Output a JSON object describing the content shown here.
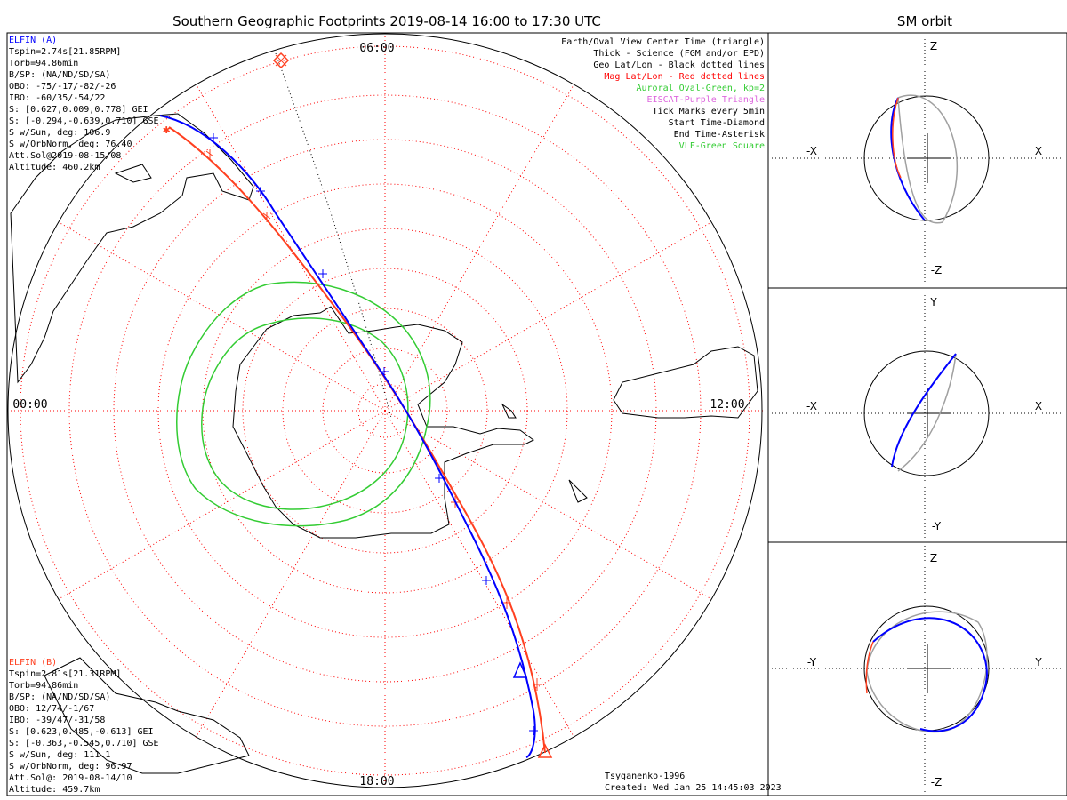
{
  "title": "Southern Geographic Footprints 2019-08-14 16:00 to 17:30 UTC",
  "sm_title": "SM orbit",
  "mlt_labels": {
    "top": "06:00",
    "left": "00:00",
    "right": "12:00",
    "bottom": "18:00"
  },
  "elfin_a": {
    "name": "ELFIN (A)",
    "color": "#0000ff",
    "lines": [
      "Tspin=2.74s[21.85RPM]",
      "Torb=94.86min",
      "B/SP: (NA/ND/SD/SA)",
      "OBO: -75/-17/-82/-26",
      "IBO: -60/35/-54/22",
      "S: [0.627,0.009,0.778] GEI",
      "S: [-0.294,-0.639,0.710] GSE",
      "S w/Sun, deg: 106.9",
      "S w/OrbNorm, deg: 76.40",
      "Att.Sol@2019-08-15/08",
      "Altitude: 460.2km"
    ]
  },
  "elfin_b": {
    "name": "ELFIN (B)",
    "color": "#ff4020",
    "lines": [
      "Tspin=2.81s[21.31RPM]",
      "Torb=94.86min",
      "B/SP: (NA/ND/SD/SA)",
      "OBO: 12/74/-1/67",
      "IBO: -39/47/-31/58",
      "S: [0.623,0.485,-0.613] GEI",
      "S: [-0.363,-0.545,0.710] GSE",
      "S w/Sun, deg: 111.1",
      "S w/OrbNorm, deg: 96.97",
      "Att.Sol@: 2019-08-14/10",
      "Altitude: 459.7km"
    ]
  },
  "legend": [
    {
      "text": "Earth/Oval View Center Time (triangle)",
      "color": "#000000"
    },
    {
      "text": "Thick - Science (FGM and/or EPD)",
      "color": "#000000"
    },
    {
      "text": "Geo Lat/Lon - Black dotted lines",
      "color": "#000000"
    },
    {
      "text": "Mag Lat/Lon - Red dotted lines",
      "color": "#ff0000"
    },
    {
      "text": "Auroral Oval-Green, kp=2",
      "color": "#33cc33"
    },
    {
      "text": "EISCAT-Purple Triangle",
      "color": "#dd66dd"
    },
    {
      "text": "Tick Marks every 5min",
      "color": "#000000"
    },
    {
      "text": "Start Time-Diamond",
      "color": "#000000"
    },
    {
      "text": "End Time-Asterisk",
      "color": "#000000"
    },
    {
      "text": "VLF-Green Square",
      "color": "#33cc33"
    }
  ],
  "footer": {
    "model": "Tsyganenko-1996",
    "created": "Created: Wed Jan 25 14:45:03 2023"
  },
  "panels": [
    {
      "top": "Z",
      "bottom": "-Z",
      "left": "-X",
      "right": "X"
    },
    {
      "top": "Y",
      "bottom": "-Y",
      "left": "-X",
      "right": "X"
    },
    {
      "top": "Z",
      "bottom": "-Z",
      "left": "-Y",
      "right": "Y"
    }
  ],
  "colors": {
    "oval": "#33cc33",
    "grid_mag": "#ff0000",
    "track_a": "#0000ff",
    "track_b": "#ff4020",
    "orbit_gray": "#a0a0a0"
  }
}
